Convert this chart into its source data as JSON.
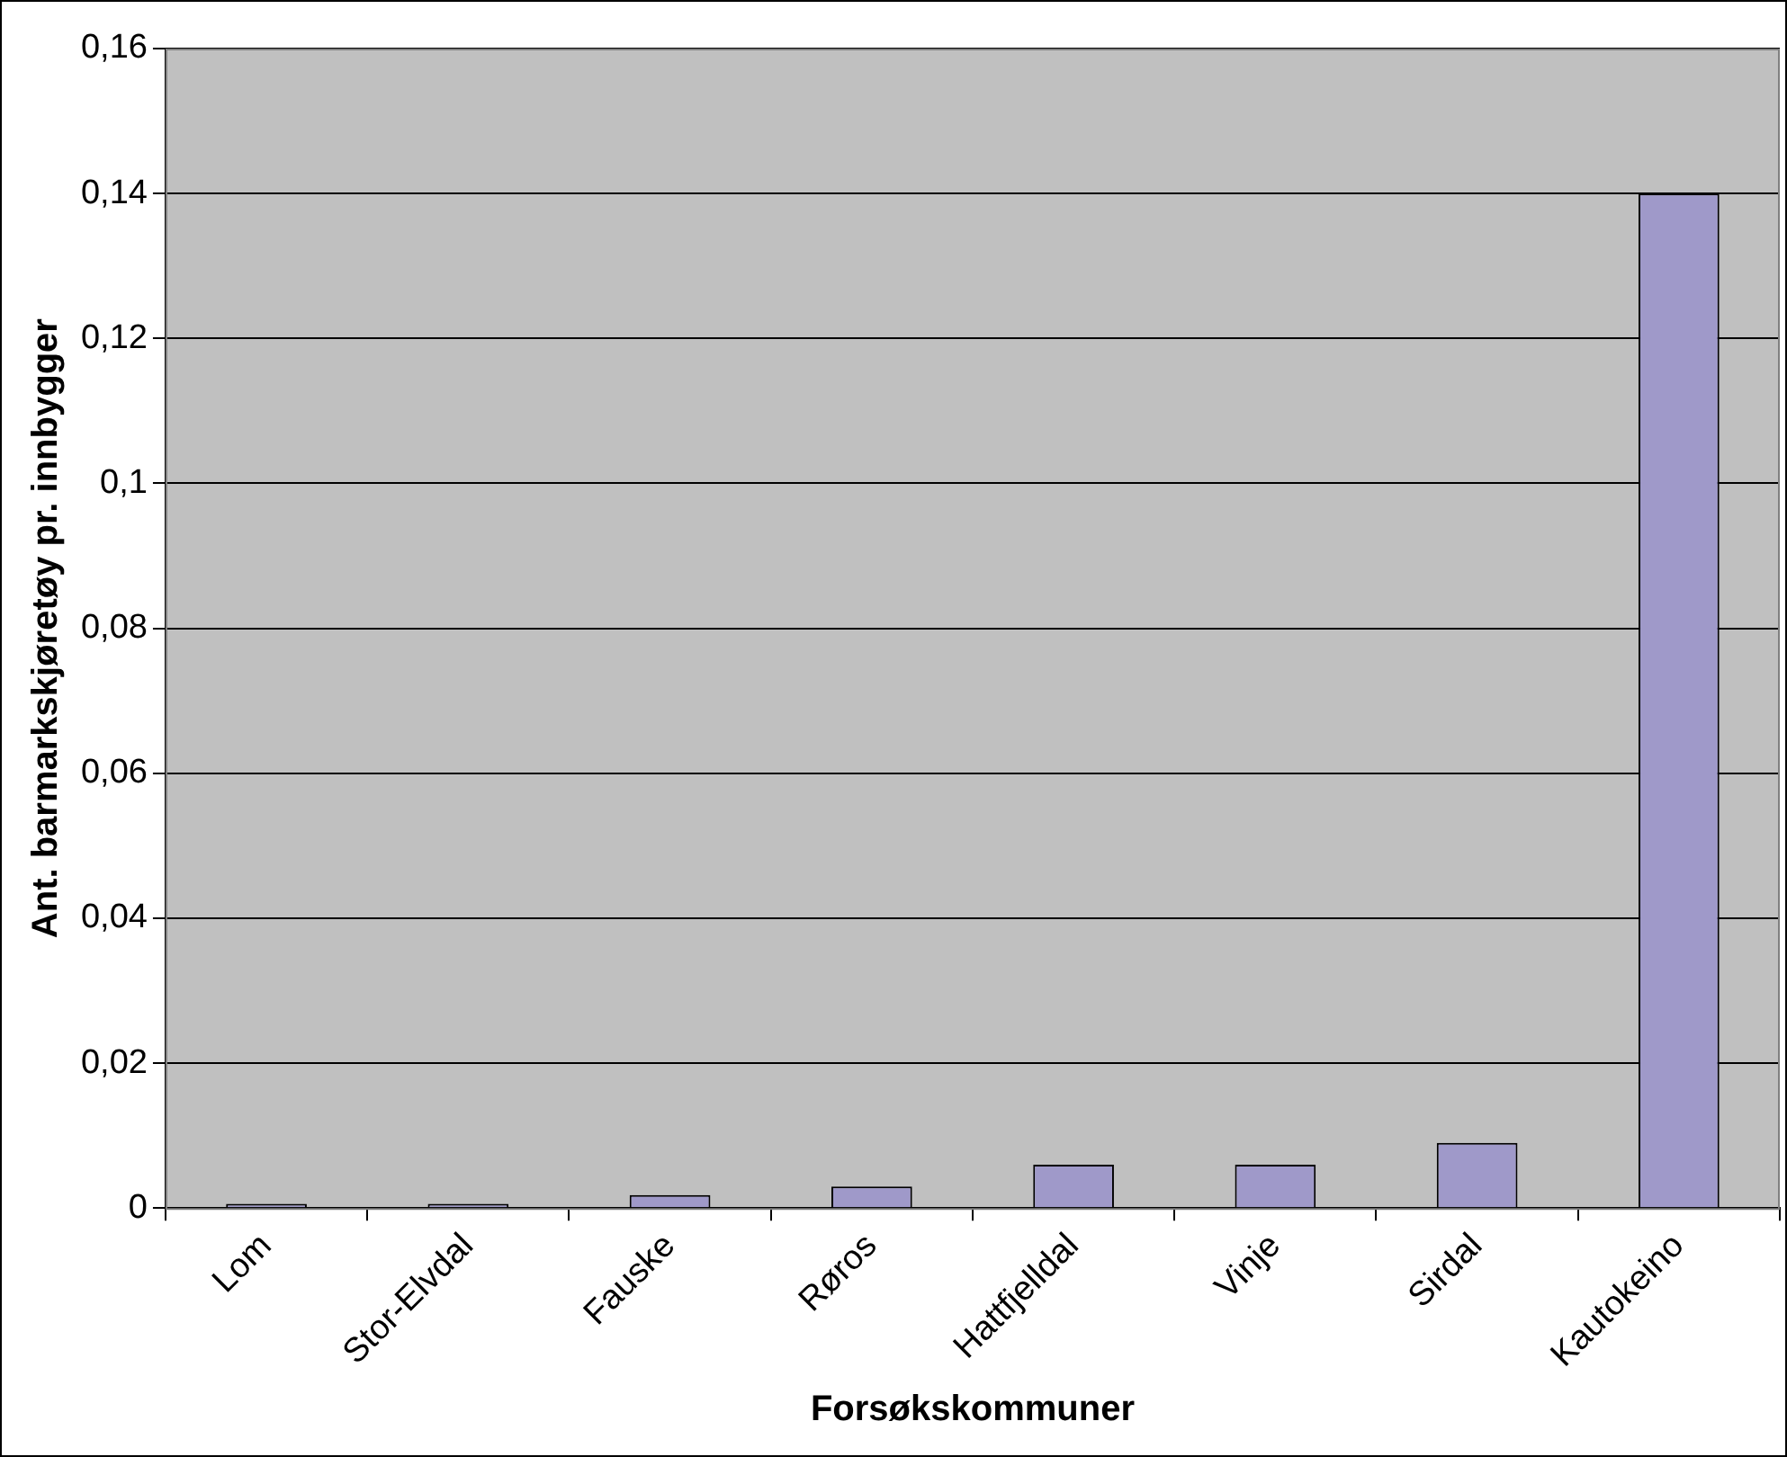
{
  "chart_data": {
    "type": "bar",
    "xlabel": "Forsøkskommuner",
    "ylabel": "Ant. barmarkskjøretøy pr. innbygger",
    "categories": [
      "Lom",
      "Stor-Elvdal",
      "Fauske",
      "Røros",
      "Hattfjelldal",
      "Vinje",
      "Sirdal",
      "Kautokeino"
    ],
    "values": [
      0.0006,
      0.0006,
      0.0018,
      0.003,
      0.006,
      0.006,
      0.009,
      0.14
    ],
    "color": "#9f99c9",
    "ylim": [
      0,
      0.16
    ],
    "yticks": [
      {
        "value": 0,
        "label": "0"
      },
      {
        "value": 0.02,
        "label": "0,02"
      },
      {
        "value": 0.04,
        "label": "0,04"
      },
      {
        "value": 0.06,
        "label": "0,06"
      },
      {
        "value": 0.08,
        "label": "0,08"
      },
      {
        "value": 0.1,
        "label": "0,1"
      },
      {
        "value": 0.12,
        "label": "0,12"
      },
      {
        "value": 0.14,
        "label": "0,14"
      },
      {
        "value": 0.16,
        "label": "0,16"
      }
    ],
    "grid": "y"
  }
}
